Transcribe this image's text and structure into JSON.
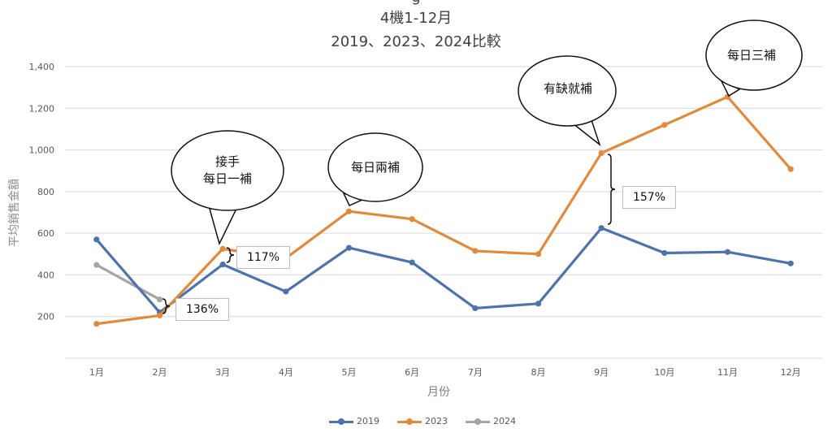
{
  "title_partial": "g",
  "title_line1": "4機1-12月",
  "title_line2": "2019、2023、2024比較",
  "chart_data": {
    "type": "line",
    "categories": [
      "1月",
      "2月",
      "3月",
      "4月",
      "5月",
      "6月",
      "7月",
      "8月",
      "9月",
      "10月",
      "11月",
      "12月"
    ],
    "xlabel": "月份",
    "ylabel": "平均銷售金額",
    "ylim": [
      0,
      1400
    ],
    "yticks": [
      "200",
      "400",
      "600",
      "800",
      "1,000",
      "1,200",
      "1,400"
    ],
    "grid": true,
    "legend_position": "bottom",
    "series": [
      {
        "name": "2019",
        "color": "#4e72ac",
        "values": [
          570,
          220,
          450,
          320,
          530,
          460,
          240,
          262,
          625,
          505,
          510,
          455
        ]
      },
      {
        "name": "2023",
        "color": "#e08a3e",
        "values": [
          165,
          205,
          525,
          480,
          705,
          668,
          515,
          500,
          985,
          1120,
          1255,
          908
        ]
      },
      {
        "name": "2024",
        "color": "#a5a5a5",
        "values": [
          448,
          282,
          null,
          null,
          null,
          null,
          null,
          null,
          null,
          null,
          null,
          null
        ]
      }
    ],
    "annotations": [
      {
        "text": "接手\n每日一補",
        "month": "3月"
      },
      {
        "text": "每日兩補",
        "month": "5月"
      },
      {
        "text": "有缺就補",
        "month": "9月"
      },
      {
        "text": "每日三補",
        "month": "11月"
      }
    ],
    "percent_labels": [
      {
        "text": "136%",
        "month": "2月"
      },
      {
        "text": "117%",
        "month": "3月"
      },
      {
        "text": "157%",
        "month": "9月"
      }
    ]
  }
}
